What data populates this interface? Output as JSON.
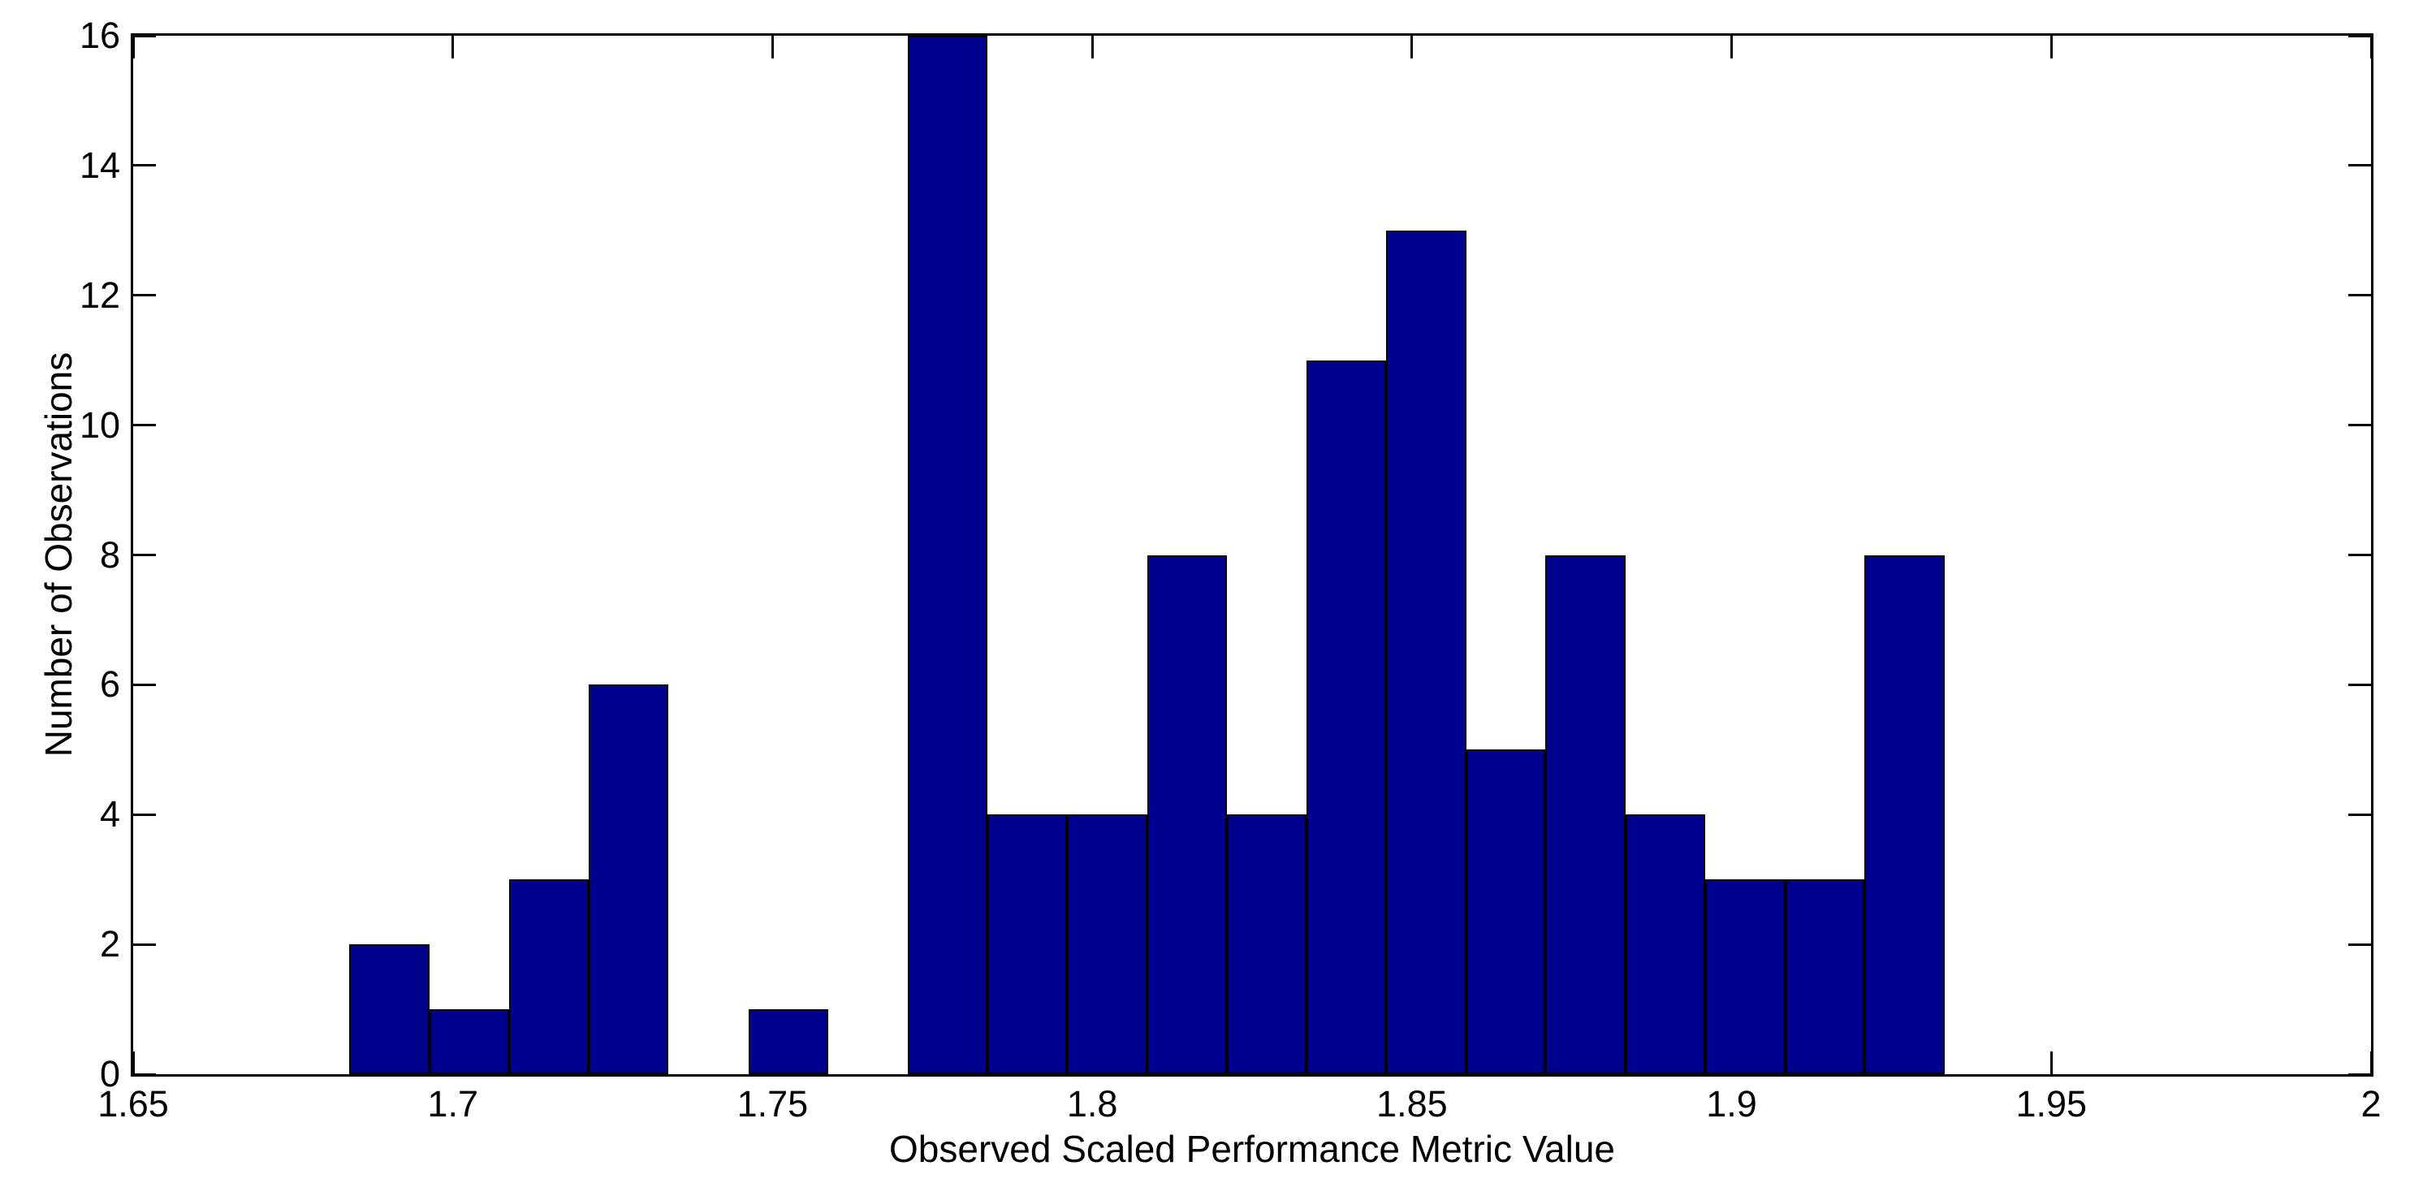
{
  "figure": {
    "background": "#ffffff",
    "axis_color": "#000000",
    "text_color": "#000000"
  },
  "chart_data": {
    "type": "bar",
    "subtype": "histogram",
    "title": "",
    "xlabel": "Observed Scaled Performance Metric Value",
    "ylabel": "Number of Observations",
    "xlim": [
      1.65,
      2.0
    ],
    "ylim": [
      0,
      16
    ],
    "grid": false,
    "legend": null,
    "bar_fill": "#00008F",
    "bar_edge": "#000000",
    "bin_edges": [
      1.6838,
      1.6963,
      1.7088,
      1.7212,
      1.7337,
      1.7462,
      1.7587,
      1.7711,
      1.7836,
      1.7961,
      1.8086,
      1.821,
      1.8335,
      1.846,
      1.8585,
      1.8709,
      1.8834,
      1.8959,
      1.9084,
      1.9208,
      1.9333
    ],
    "counts": [
      2,
      1,
      3,
      6,
      0,
      1,
      0,
      16,
      4,
      4,
      8,
      4,
      11,
      13,
      5,
      8,
      4,
      3,
      3,
      8
    ],
    "xticks": {
      "values": [
        1.65,
        1.7,
        1.75,
        1.8,
        1.85,
        1.9,
        1.95,
        2.0
      ],
      "labels": [
        "1.65",
        "1.7",
        "1.75",
        "1.8",
        "1.85",
        "1.9",
        "1.95",
        "2"
      ]
    },
    "yticks": {
      "values": [
        0,
        2,
        4,
        6,
        8,
        10,
        12,
        14,
        16
      ],
      "labels": [
        "0",
        "2",
        "4",
        "6",
        "8",
        "10",
        "12",
        "14",
        "16"
      ]
    }
  }
}
